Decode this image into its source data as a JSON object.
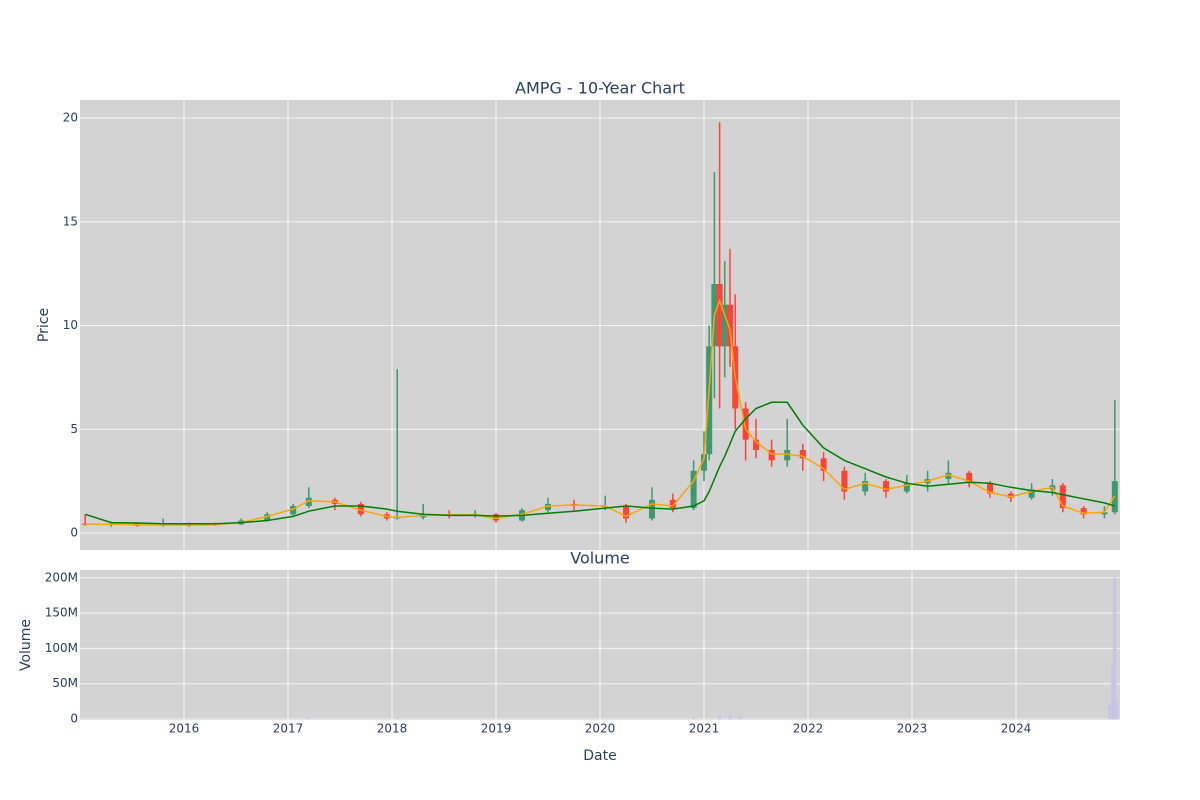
{
  "chart_data": [
    {
      "type": "candlestick",
      "title": "AMPG - 10-Year Chart",
      "y_label": "Price",
      "xlim": [
        2015.0,
        2025.0
      ],
      "ylim": [
        -0.82,
        20.87
      ],
      "yticks": [
        0,
        5,
        10,
        15,
        20
      ],
      "grid": true,
      "increasing_color": "#3d9970",
      "decreasing_color": "#ff4136",
      "x": [
        2015.05,
        2015.3,
        2015.55,
        2015.8,
        2016.05,
        2016.3,
        2016.55,
        2016.8,
        2017.05,
        2017.2,
        2017.45,
        2017.7,
        2017.95,
        2018.05,
        2018.3,
        2018.55,
        2018.8,
        2019.0,
        2019.25,
        2019.5,
        2019.75,
        2020.05,
        2020.25,
        2020.5,
        2020.7,
        2020.9,
        2021.0,
        2021.05,
        2021.1,
        2021.15,
        2021.2,
        2021.25,
        2021.3,
        2021.4,
        2021.5,
        2021.65,
        2021.8,
        2021.95,
        2022.15,
        2022.35,
        2022.55,
        2022.75,
        2022.95,
        2023.15,
        2023.35,
        2023.55,
        2023.75,
        2023.95,
        2024.15,
        2024.35,
        2024.45,
        2024.65,
        2024.85,
        2024.95
      ],
      "open": [
        0.45,
        0.4,
        0.45,
        0.35,
        0.4,
        0.38,
        0.42,
        0.6,
        0.9,
        1.3,
        1.6,
        1.4,
        0.9,
        0.7,
        0.75,
        0.9,
        0.85,
        0.9,
        0.6,
        1.1,
        1.4,
        1.3,
        1.3,
        0.7,
        1.6,
        1.2,
        3.0,
        3.8,
        9.0,
        12.0,
        9.0,
        11.0,
        9.0,
        6.0,
        4.5,
        4.0,
        3.5,
        4.0,
        3.6,
        3.0,
        2.0,
        2.5,
        2.0,
        2.4,
        2.6,
        2.9,
        2.4,
        1.9,
        1.7,
        2.1,
        2.3,
        1.2,
        0.9,
        1.0
      ],
      "high": [
        0.9,
        0.55,
        0.5,
        0.7,
        0.5,
        0.5,
        0.7,
        1.0,
        1.4,
        2.2,
        1.7,
        1.5,
        1.0,
        7.9,
        1.4,
        1.1,
        1.1,
        0.95,
        1.2,
        1.7,
        1.6,
        1.8,
        1.4,
        2.2,
        1.9,
        3.5,
        4.9,
        10.0,
        17.4,
        19.8,
        13.1,
        13.7,
        11.5,
        6.3,
        5.5,
        4.5,
        5.5,
        4.3,
        3.9,
        3.2,
        2.9,
        2.6,
        2.8,
        3.0,
        3.5,
        3.0,
        2.5,
        2.0,
        2.4,
        2.6,
        2.4,
        1.3,
        1.3,
        6.4
      ],
      "low": [
        0.35,
        0.3,
        0.3,
        0.3,
        0.3,
        0.35,
        0.38,
        0.55,
        0.85,
        1.2,
        1.1,
        0.8,
        0.6,
        0.65,
        0.65,
        0.7,
        0.75,
        0.5,
        0.55,
        1.0,
        1.1,
        1.1,
        0.5,
        0.6,
        1.0,
        1.1,
        2.5,
        3.5,
        6.5,
        6.0,
        7.5,
        8.0,
        5.0,
        3.5,
        3.6,
        3.2,
        3.2,
        3.0,
        2.5,
        1.6,
        1.8,
        1.7,
        1.9,
        2.0,
        2.4,
        2.2,
        1.7,
        1.5,
        1.6,
        1.8,
        1.0,
        0.7,
        0.7,
        0.9
      ],
      "close": [
        0.4,
        0.45,
        0.35,
        0.4,
        0.38,
        0.42,
        0.6,
        0.9,
        1.3,
        1.7,
        1.4,
        0.9,
        0.7,
        0.75,
        0.9,
        0.85,
        0.9,
        0.6,
        1.1,
        1.4,
        1.3,
        1.3,
        0.7,
        1.6,
        1.2,
        3.0,
        3.8,
        9.0,
        12.0,
        9.0,
        11.0,
        9.0,
        6.0,
        4.5,
        4.0,
        3.5,
        4.0,
        3.6,
        3.0,
        2.0,
        2.5,
        2.0,
        2.4,
        2.6,
        2.9,
        2.4,
        1.9,
        1.7,
        2.1,
        2.3,
        1.2,
        0.9,
        1.0,
        2.5
      ],
      "series": [
        {
          "color": "#ffa500",
          "values": [
            0.42,
            0.42,
            0.4,
            0.38,
            0.38,
            0.4,
            0.5,
            0.8,
            1.15,
            1.55,
            1.5,
            1.1,
            0.8,
            0.75,
            0.85,
            0.88,
            0.88,
            0.7,
            0.9,
            1.3,
            1.35,
            1.3,
            0.8,
            1.4,
            1.3,
            2.5,
            3.6,
            7.0,
            10.5,
            11.2,
            10.5,
            9.8,
            7.5,
            5.0,
            4.4,
            3.8,
            3.8,
            3.7,
            3.1,
            2.1,
            2.4,
            2.1,
            2.3,
            2.5,
            2.8,
            2.5,
            1.95,
            1.75,
            2.0,
            2.2,
            1.3,
            0.95,
            1.0,
            1.8
          ]
        },
        {
          "color": "#008000",
          "values": [
            0.9,
            0.5,
            0.48,
            0.45,
            0.45,
            0.45,
            0.5,
            0.6,
            0.8,
            1.05,
            1.3,
            1.3,
            1.15,
            1.05,
            0.9,
            0.85,
            0.85,
            0.82,
            0.85,
            0.95,
            1.05,
            1.2,
            1.3,
            1.2,
            1.15,
            1.3,
            1.55,
            2.0,
            2.6,
            3.2,
            3.7,
            4.3,
            4.9,
            5.5,
            6.0,
            6.3,
            6.3,
            5.2,
            4.1,
            3.5,
            3.1,
            2.7,
            2.4,
            2.25,
            2.35,
            2.45,
            2.4,
            2.2,
            2.05,
            1.95,
            1.85,
            1.65,
            1.45,
            1.3
          ]
        }
      ]
    },
    {
      "type": "bar",
      "title": "Volume",
      "y_label": "Volume",
      "x_label": "Date",
      "color": "#c8c4e8",
      "xlim": [
        2015.0,
        2025.0
      ],
      "ylim": [
        -1400000,
        211000000
      ],
      "grid": true,
      "xticks": [
        2016,
        2017,
        2018,
        2019,
        2020,
        2021,
        2022,
        2023,
        2024
      ],
      "yticks": [
        0,
        {
          "value": 50000000,
          "label": "50M"
        },
        {
          "value": 100000000,
          "label": "100M"
        },
        {
          "value": 150000000,
          "label": "150M"
        },
        {
          "value": 200000000,
          "label": "200M"
        }
      ],
      "x": [
        2017.2,
        2018.05,
        2020.9,
        2021.15,
        2021.25,
        2021.35,
        2024.9,
        2024.93,
        2024.95,
        2024.97
      ],
      "values": [
        1500000,
        2000000,
        2500000,
        5000000,
        6000000,
        4000000,
        20000000,
        80000000,
        200000000,
        25000000
      ]
    }
  ]
}
